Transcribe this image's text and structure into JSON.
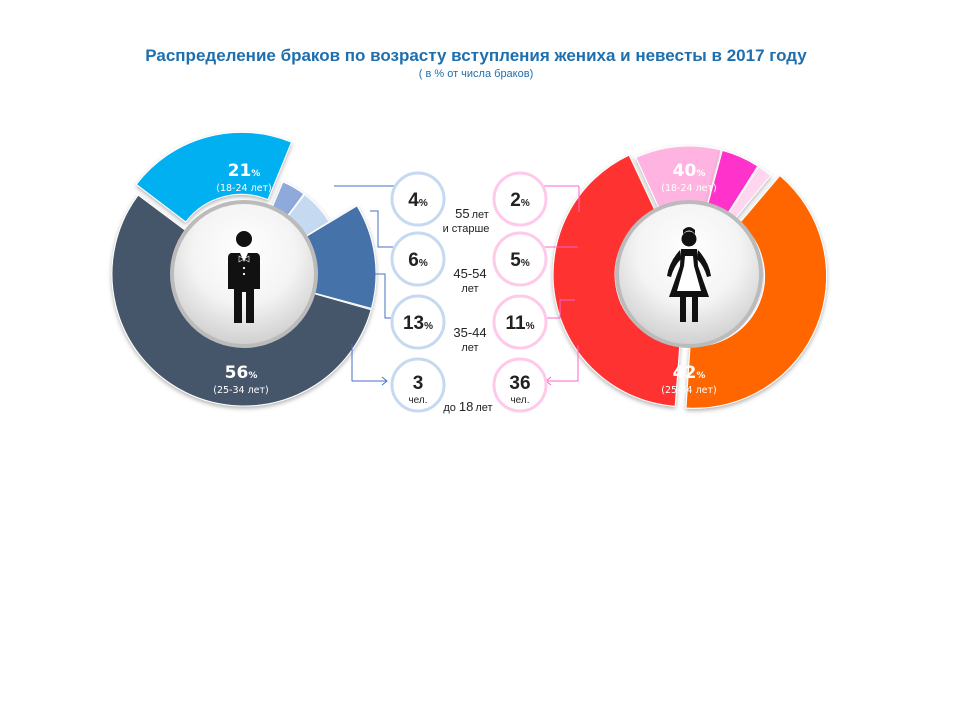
{
  "header": {
    "title": "Распределение браков по возрасту вступления жениха и невесты в 2017 году",
    "subtitle": "( в % от числа браков)"
  },
  "chart_data": [
    {
      "type": "pie",
      "name": "groom",
      "slices": [
        {
          "category": "18-24 лет",
          "value": 21,
          "color": "#00b0f0"
        },
        {
          "category": "55 лет и старше",
          "value": 4,
          "color": "#8eaadb"
        },
        {
          "category": "45-54 лет",
          "value": 6,
          "color": "#c5d9f1"
        },
        {
          "category": "35-44 лет",
          "value": 13,
          "color": "#4472a8"
        },
        {
          "category": "25-34 лет",
          "value": 56,
          "color": "#44546a"
        }
      ]
    },
    {
      "type": "pie",
      "name": "bride",
      "slices": [
        {
          "category": "18-24 лет",
          "value": 40,
          "color": "#ff6600"
        },
        {
          "category": "25-34 лет",
          "value": 42,
          "color": "#ff3333"
        },
        {
          "category": "35-44 лет",
          "value": 11,
          "color": "#ffb3e0"
        },
        {
          "category": "45-54 лет",
          "value": 5,
          "color": "#ff33cc"
        },
        {
          "category": "55 лет и старше",
          "value": 2,
          "color": "#ffd6f0"
        }
      ]
    }
  ],
  "labels": {
    "groom_1824": {
      "value": "21",
      "sign": "%",
      "range": "(18-24 лет)"
    },
    "groom_2534": {
      "value": "56",
      "sign": "%",
      "range": "(25-34 лет)"
    },
    "bride_1824": {
      "value": "40",
      "sign": "%",
      "range": "(18-24 лет)"
    },
    "bride_2534": {
      "value": "42",
      "sign": "%",
      "range": "(25-34 лет)"
    }
  },
  "groom_bubbles": [
    {
      "value": "4",
      "sign": "%"
    },
    {
      "value": "6",
      "sign": "%"
    },
    {
      "value": "13",
      "sign": "%"
    },
    {
      "value": "3",
      "unit": "чел."
    }
  ],
  "bride_bubbles": [
    {
      "value": "2",
      "sign": "%"
    },
    {
      "value": "5",
      "sign": "%"
    },
    {
      "value": "11",
      "sign": "%"
    },
    {
      "value": "36",
      "unit": "чел."
    }
  ],
  "age_groups": [
    {
      "main": "55",
      "small": "лет",
      "line2": "и старше"
    },
    {
      "main": "45-54",
      "line2": "лет"
    },
    {
      "main": "35-44",
      "line2": "лет"
    },
    {
      "small_pre": "до",
      "main": "18",
      "small": "лет"
    }
  ],
  "colors": {
    "groom_bubble_border": "#c5d9f1",
    "bride_bubble_border": "#ffc9ea",
    "groom_connector": "#4472c4",
    "bride_connector": "#ff66cc"
  }
}
